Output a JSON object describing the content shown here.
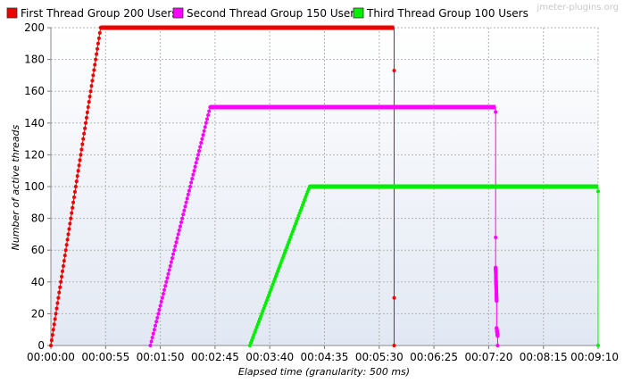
{
  "watermark": "jmeter-plugins.org",
  "chart_data": {
    "type": "line",
    "title": "",
    "xlabel": "Elapsed time (granularity: 500 ms)",
    "ylabel": "Number of active threads",
    "xlim": [
      "00:00:00",
      "00:09:10"
    ],
    "ylim": [
      0,
      200
    ],
    "x_ticks": [
      "00:00:00",
      "00:00:55",
      "00:01:50",
      "00:02:45",
      "00:03:40",
      "00:04:35",
      "00:05:30",
      "00:06:25",
      "00:07:20",
      "00:08:15",
      "00:09:10"
    ],
    "y_ticks": [
      0,
      20,
      40,
      60,
      80,
      100,
      120,
      140,
      160,
      180,
      200
    ],
    "grid": true,
    "legend_position": "top",
    "series": [
      {
        "name": "First Thread Group 200 Users",
        "color": "#ee0000",
        "points": [
          [
            "00:00:00",
            0
          ],
          [
            "00:00:50",
            200
          ],
          [
            "00:05:45",
            200
          ],
          [
            "00:05:45",
            173
          ],
          [
            "00:05:45",
            30
          ],
          [
            "00:05:45",
            0
          ]
        ]
      },
      {
        "name": "Second Thread Group 150 Users",
        "color": "#ff00ff",
        "points": [
          [
            "00:01:40",
            0
          ],
          [
            "00:02:40",
            150
          ],
          [
            "00:07:27",
            150
          ],
          [
            "00:07:27",
            147
          ],
          [
            "00:07:27",
            68
          ],
          [
            "00:07:27",
            49
          ],
          [
            "00:07:28",
            28
          ],
          [
            "00:07:28",
            11
          ],
          [
            "00:07:29",
            6
          ],
          [
            "00:07:29",
            0
          ]
        ]
      },
      {
        "name": "Third Thread Group 100 Users",
        "color": "#00ee00",
        "points": [
          [
            "00:03:20",
            0
          ],
          [
            "00:04:20",
            100
          ],
          [
            "00:09:10",
            100
          ],
          [
            "00:09:10",
            97
          ],
          [
            "00:09:10",
            0
          ]
        ]
      }
    ]
  }
}
